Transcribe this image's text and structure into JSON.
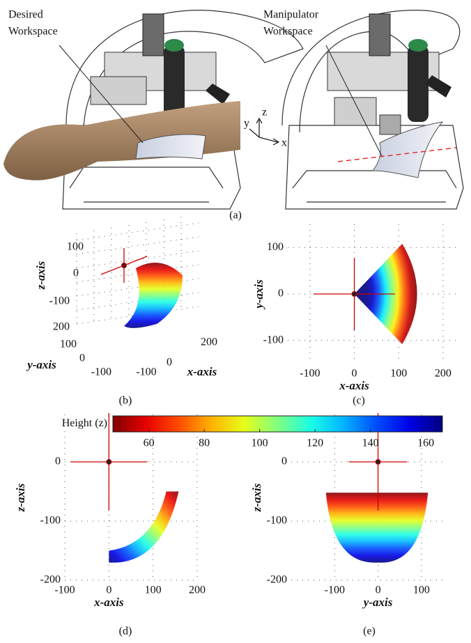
{
  "figure_a": {
    "left_label": [
      "Desired",
      "Workspace"
    ],
    "right_label": [
      "Manipulator",
      "Workspace"
    ],
    "frame_axes": [
      "y",
      "z",
      "x"
    ],
    "caption": "(a)"
  },
  "plot_b": {
    "xlabel": "x-axis",
    "ylabel": "y-axis",
    "zlabel": "z-axis",
    "zticks": [
      100,
      0,
      -100,
      200
    ],
    "yticks": [
      100,
      0,
      -100
    ],
    "xticks": [
      -100,
      0,
      200
    ],
    "caption": "(b)"
  },
  "plot_c": {
    "xlabel": "x-axis",
    "ylabel": "y-axis",
    "xlim": [
      -150,
      230
    ],
    "ylim": [
      -150,
      150
    ],
    "xticks": [
      -100,
      0,
      100,
      200
    ],
    "yticks": [
      -100,
      0,
      100
    ],
    "caption": "(c)"
  },
  "colorbar": {
    "label": "Height (z)",
    "lim": [
      47,
      166
    ],
    "ticks": [
      60,
      80,
      100,
      120,
      140,
      160
    ]
  },
  "plot_d": {
    "xlabel": "x-axis",
    "ylabel": "z-axis",
    "xlim": [
      -100,
      200
    ],
    "ylim": [
      -200,
      80
    ],
    "xticks": [
      -100,
      0,
      100,
      200
    ],
    "yticks": [
      -200,
      -100,
      0
    ],
    "caption": "(d)"
  },
  "plot_e": {
    "xlabel": "y-axis",
    "ylabel": "z-axis",
    "xlim": [
      -200,
      150
    ],
    "ylim": [
      -200,
      80
    ],
    "xticks": [
      -100,
      0,
      100
    ],
    "yticks": [
      -200,
      -100,
      0
    ],
    "caption": "(e)"
  }
}
